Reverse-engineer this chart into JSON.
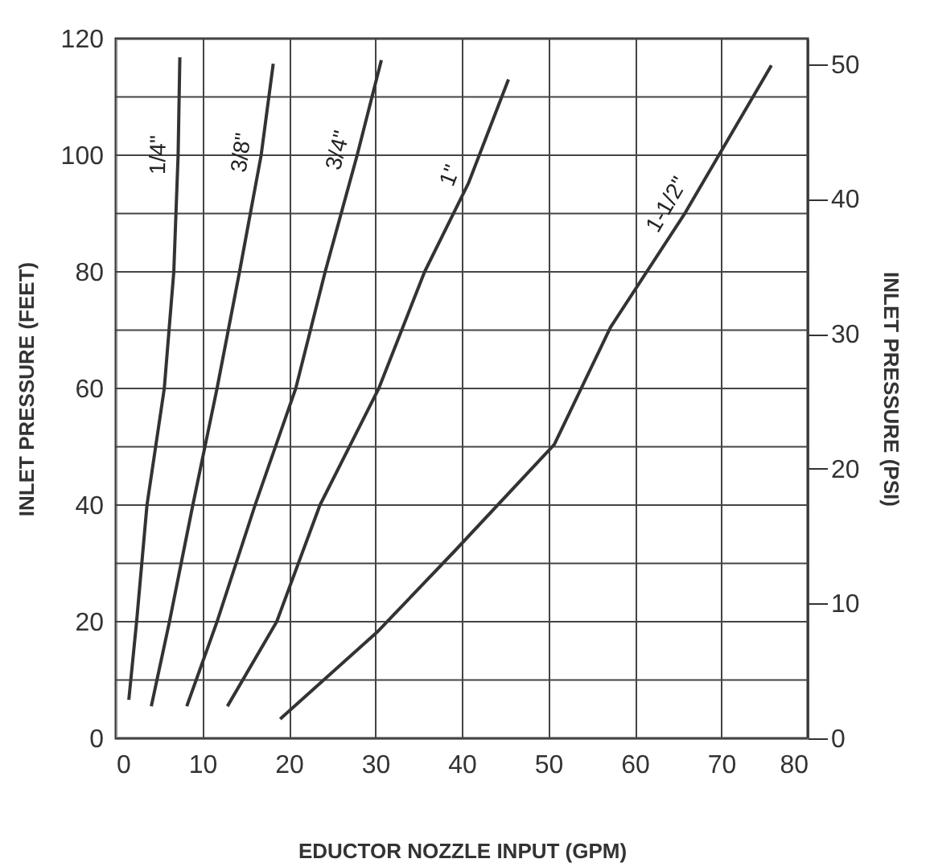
{
  "chart_data": {
    "type": "line",
    "xlabel": "EDUCTOR NOZZLE INPUT (GPM)",
    "ylabel": "INLET PRESSURE (FEET)",
    "y2label": "INLET PRESSURE (PSI)",
    "xlim": [
      0,
      80
    ],
    "xticks": [
      0,
      10,
      20,
      30,
      40,
      50,
      60,
      70,
      80
    ],
    "ylim": [
      0,
      120
    ],
    "yticks": [
      0,
      {
        "value": 10,
        "label": null
      },
      20,
      {
        "value": 30,
        "label": null
      },
      40,
      {
        "value": 50,
        "label": null
      },
      60,
      {
        "value": 70,
        "label": null
      },
      80,
      {
        "value": 90,
        "label": null
      },
      100,
      {
        "value": 110,
        "label": null
      },
      120
    ],
    "y2lim": [
      0,
      51.9
    ],
    "y2ticks": [
      0,
      10,
      20,
      30,
      40,
      50
    ],
    "grid": true,
    "legend": false,
    "marker": "none",
    "line_style": "solid",
    "series": [
      {
        "name": "1/4\"",
        "color": "#333333",
        "x": [
          1.5,
          2.4,
          3.6,
          5.6,
          6.7,
          7.2,
          7.4
        ],
        "values": [
          6.6,
          20,
          40,
          60,
          80,
          100,
          116.8
        ]
      },
      {
        "name": "3/8\"",
        "color": "#333333",
        "x": [
          4.1,
          6.2,
          8.9,
          11.7,
          14.3,
          16.8,
          18.2
        ],
        "values": [
          5.5,
          20,
          40,
          60,
          80,
          100,
          115.7
        ]
      },
      {
        "name": "3/4\"",
        "color": "#333333",
        "x": [
          8.2,
          11.7,
          16.1,
          20.8,
          24.2,
          27.9,
          30.7
        ],
        "values": [
          5.5,
          20,
          40,
          60,
          80,
          100,
          116.3
        ]
      },
      {
        "name": "1\"",
        "color": "#333333",
        "x": [
          12.9,
          18.6,
          23.6,
          30.4,
          35.7,
          40.8,
          45.4
        ],
        "values": [
          5.5,
          20,
          40,
          60,
          80,
          95.3,
          113
        ]
      },
      {
        "name": "1-1/2\"",
        "color": "#333333",
        "x": [
          19.0,
          30.2,
          39.1,
          50.7,
          57.2,
          65.7,
          75.8
        ],
        "values": [
          3.3,
          18.2,
          32,
          50.4,
          70.5,
          89.8,
          115.4
        ]
      }
    ]
  }
}
